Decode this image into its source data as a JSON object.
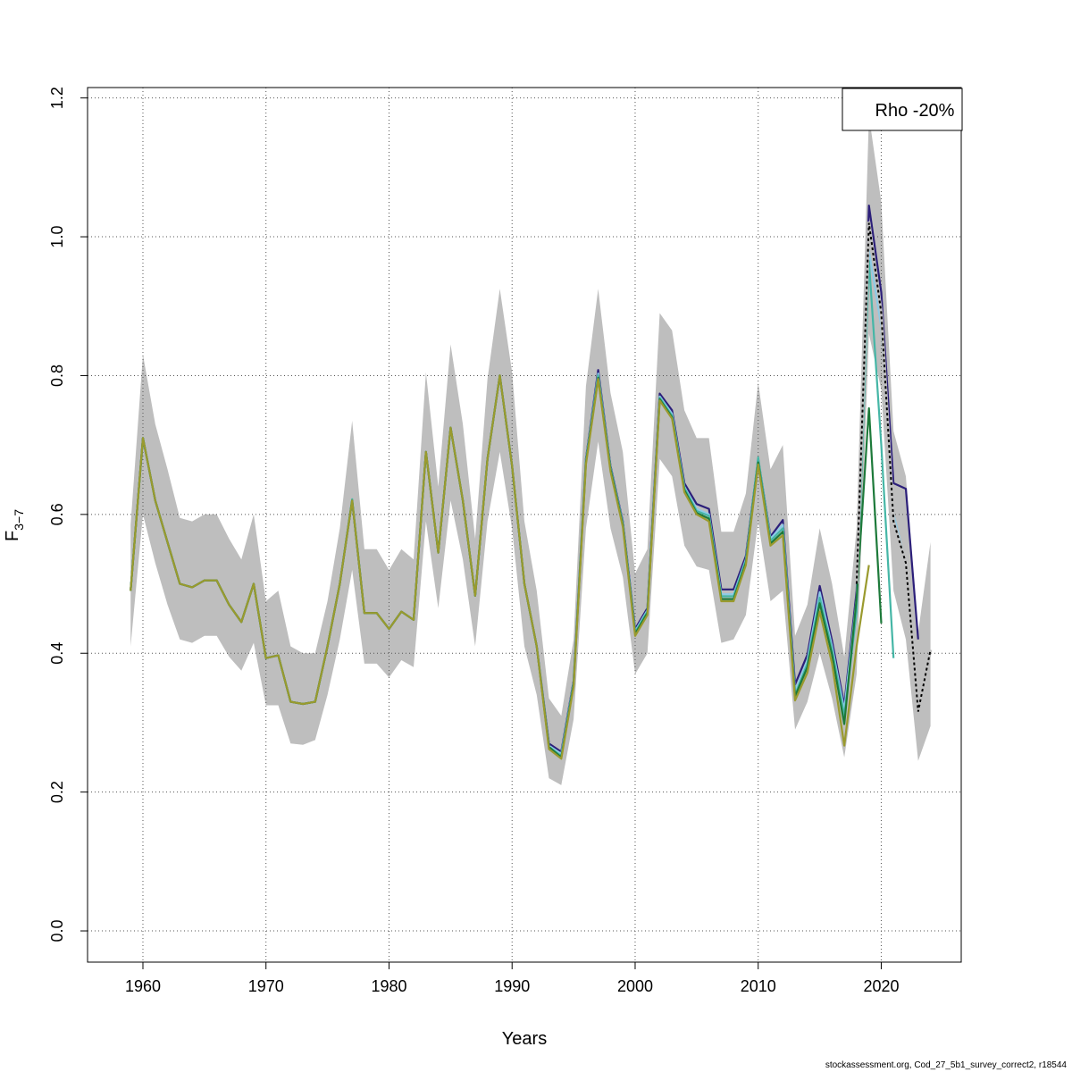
{
  "chart_data": {
    "type": "line",
    "title": "",
    "xlabel": "Years",
    "ylabel_main": "F",
    "ylabel_sub": "3−7",
    "xlim": [
      1955.5,
      2026.5
    ],
    "ylim": [
      -0.045,
      1.215
    ],
    "x_ticks": [
      1960,
      1970,
      1980,
      1990,
      2000,
      2010,
      2020
    ],
    "y_ticks": [
      0.0,
      0.2,
      0.4,
      0.6,
      0.8,
      1.0,
      1.2
    ],
    "y_tick_labels": [
      "0.0",
      "0.2",
      "0.4",
      "0.6",
      "0.8",
      "1.0",
      "1.2"
    ],
    "grid": true,
    "legend": {
      "text": "Rho -20%",
      "position": "top-right"
    },
    "confidence_band": {
      "color": "#bebebe",
      "x": [
        1959,
        1960,
        1961,
        1962,
        1963,
        1964,
        1965,
        1966,
        1967,
        1968,
        1969,
        1970,
        1971,
        1972,
        1973,
        1974,
        1975,
        1976,
        1977,
        1978,
        1979,
        1980,
        1981,
        1982,
        1983,
        1984,
        1985,
        1986,
        1987,
        1988,
        1989,
        1990,
        1991,
        1992,
        1993,
        1994,
        1995,
        1996,
        1997,
        1998,
        1999,
        2000,
        2001,
        2002,
        2003,
        2004,
        2005,
        2006,
        2007,
        2008,
        2009,
        2010,
        2011,
        2012,
        2013,
        2014,
        2015,
        2016,
        2017,
        2018,
        2019,
        2020,
        2021,
        2022,
        2023,
        2024
      ],
      "lower": [
        0.41,
        0.6,
        0.53,
        0.47,
        0.42,
        0.415,
        0.425,
        0.425,
        0.395,
        0.375,
        0.415,
        0.325,
        0.325,
        0.27,
        0.268,
        0.275,
        0.34,
        0.42,
        0.52,
        0.385,
        0.385,
        0.365,
        0.39,
        0.38,
        0.59,
        0.465,
        0.62,
        0.535,
        0.41,
        0.59,
        0.69,
        0.58,
        0.41,
        0.34,
        0.22,
        0.21,
        0.305,
        0.58,
        0.705,
        0.58,
        0.51,
        0.37,
        0.4,
        0.68,
        0.655,
        0.555,
        0.525,
        0.52,
        0.415,
        0.42,
        0.455,
        0.59,
        0.475,
        0.49,
        0.29,
        0.33,
        0.4,
        0.335,
        0.25,
        0.37,
        0.86,
        0.78,
        0.49,
        0.42,
        0.245,
        0.295
      ],
      "upper": [
        0.585,
        0.83,
        0.73,
        0.665,
        0.595,
        0.59,
        0.6,
        0.6,
        0.565,
        0.535,
        0.6,
        0.475,
        0.49,
        0.41,
        0.4,
        0.4,
        0.475,
        0.58,
        0.735,
        0.55,
        0.55,
        0.52,
        0.55,
        0.535,
        0.805,
        0.64,
        0.845,
        0.73,
        0.565,
        0.795,
        0.925,
        0.805,
        0.59,
        0.49,
        0.335,
        0.31,
        0.42,
        0.785,
        0.925,
        0.775,
        0.69,
        0.515,
        0.55,
        0.89,
        0.865,
        0.75,
        0.71,
        0.71,
        0.575,
        0.575,
        0.63,
        0.79,
        0.665,
        0.7,
        0.425,
        0.47,
        0.58,
        0.5,
        0.395,
        0.58,
        1.175,
        1.05,
        0.72,
        0.655,
        0.43,
        0.56
      ]
    },
    "series": [
      {
        "color": "#2c1f7a",
        "x": [
          1959,
          1960,
          1961,
          1962,
          1963,
          1964,
          1965,
          1966,
          1967,
          1968,
          1969,
          1970,
          1971,
          1972,
          1973,
          1974,
          1975,
          1976,
          1977,
          1978,
          1979,
          1980,
          1981,
          1982,
          1983,
          1984,
          1985,
          1986,
          1987,
          1988,
          1989,
          1990,
          1991,
          1992,
          1993,
          1994,
          1995,
          1996,
          1997,
          1998,
          1999,
          2000,
          2001,
          2002,
          2003,
          2004,
          2005,
          2006,
          2007,
          2008,
          2009,
          2010,
          2011,
          2012,
          2013,
          2014,
          2015,
          2016,
          2017,
          2018,
          2019,
          2020,
          2021,
          2022,
          2023
        ],
        "values": [
          0.49,
          0.71,
          0.62,
          0.56,
          0.5,
          0.495,
          0.505,
          0.505,
          0.47,
          0.445,
          0.5,
          0.393,
          0.397,
          0.33,
          0.327,
          0.33,
          0.41,
          0.5,
          0.62,
          0.458,
          0.458,
          0.435,
          0.46,
          0.448,
          0.69,
          0.545,
          0.725,
          0.62,
          0.483,
          0.68,
          0.8,
          0.67,
          0.5,
          0.41,
          0.27,
          0.258,
          0.36,
          0.68,
          0.808,
          0.67,
          0.59,
          0.435,
          0.465,
          0.774,
          0.75,
          0.645,
          0.615,
          0.608,
          0.492,
          0.492,
          0.54,
          0.68,
          0.568,
          0.592,
          0.355,
          0.398,
          0.497,
          0.418,
          0.325,
          0.49,
          1.045,
          0.92,
          0.645,
          0.637,
          0.42
        ]
      },
      {
        "color": "#8ecbe6",
        "x": [
          1959,
          1960,
          1961,
          1962,
          1963,
          1964,
          1965,
          1966,
          1967,
          1968,
          1969,
          1970,
          1971,
          1972,
          1973,
          1974,
          1975,
          1976,
          1977,
          1978,
          1979,
          1980,
          1981,
          1982,
          1983,
          1984,
          1985,
          1986,
          1987,
          1988,
          1989,
          1990,
          1991,
          1992,
          1993,
          1994,
          1995,
          1996,
          1997,
          1998,
          1999,
          2000,
          2001,
          2002,
          2003,
          2004,
          2005,
          2006,
          2007,
          2008,
          2009,
          2010,
          2011,
          2012,
          2013,
          2014,
          2015,
          2016,
          2017,
          2018,
          2019,
          2020,
          2021,
          2022
        ],
        "values": [
          0.49,
          0.71,
          0.62,
          0.56,
          0.5,
          0.495,
          0.505,
          0.505,
          0.47,
          0.445,
          0.5,
          0.393,
          0.397,
          0.33,
          0.327,
          0.33,
          0.41,
          0.5,
          0.62,
          0.458,
          0.458,
          0.435,
          0.46,
          0.448,
          0.69,
          0.545,
          0.725,
          0.62,
          0.483,
          0.68,
          0.8,
          0.67,
          0.5,
          0.41,
          0.267,
          0.255,
          0.358,
          0.678,
          0.803,
          0.668,
          0.588,
          0.432,
          0.462,
          0.77,
          0.745,
          0.64,
          0.608,
          0.6,
          0.485,
          0.485,
          0.535,
          0.68,
          0.565,
          0.585,
          0.345,
          0.39,
          0.488,
          0.41,
          0.318,
          0.48,
          0.98,
          0.87,
          0.6,
          0.53
        ]
      },
      {
        "color": "#45b6a6",
        "x": [
          1959,
          1960,
          1961,
          1962,
          1963,
          1964,
          1965,
          1966,
          1967,
          1968,
          1969,
          1970,
          1971,
          1972,
          1973,
          1974,
          1975,
          1976,
          1977,
          1978,
          1979,
          1980,
          1981,
          1982,
          1983,
          1984,
          1985,
          1986,
          1987,
          1988,
          1989,
          1990,
          1991,
          1992,
          1993,
          1994,
          1995,
          1996,
          1997,
          1998,
          1999,
          2000,
          2001,
          2002,
          2003,
          2004,
          2005,
          2006,
          2007,
          2008,
          2009,
          2010,
          2011,
          2012,
          2013,
          2014,
          2015,
          2016,
          2017,
          2018,
          2019,
          2020,
          2021
        ],
        "values": [
          0.49,
          0.71,
          0.62,
          0.56,
          0.5,
          0.495,
          0.505,
          0.505,
          0.47,
          0.445,
          0.5,
          0.393,
          0.397,
          0.33,
          0.327,
          0.33,
          0.41,
          0.5,
          0.622,
          0.458,
          0.458,
          0.435,
          0.46,
          0.448,
          0.69,
          0.545,
          0.725,
          0.62,
          0.483,
          0.68,
          0.8,
          0.67,
          0.5,
          0.41,
          0.265,
          0.252,
          0.357,
          0.676,
          0.8,
          0.667,
          0.586,
          0.43,
          0.46,
          0.768,
          0.742,
          0.638,
          0.605,
          0.598,
          0.482,
          0.482,
          0.533,
          0.682,
          0.562,
          0.58,
          0.34,
          0.385,
          0.48,
          0.405,
          0.31,
          0.46,
          0.965,
          0.7,
          0.393
        ]
      },
      {
        "color": "#1d7a3a",
        "x": [
          1959,
          1960,
          1961,
          1962,
          1963,
          1964,
          1965,
          1966,
          1967,
          1968,
          1969,
          1970,
          1971,
          1972,
          1973,
          1974,
          1975,
          1976,
          1977,
          1978,
          1979,
          1980,
          1981,
          1982,
          1983,
          1984,
          1985,
          1986,
          1987,
          1988,
          1989,
          1990,
          1991,
          1992,
          1993,
          1994,
          1995,
          1996,
          1997,
          1998,
          1999,
          2000,
          2001,
          2002,
          2003,
          2004,
          2005,
          2006,
          2007,
          2008,
          2009,
          2010,
          2011,
          2012,
          2013,
          2014,
          2015,
          2016,
          2017,
          2018,
          2019,
          2020
        ],
        "values": [
          0.49,
          0.71,
          0.62,
          0.56,
          0.5,
          0.495,
          0.505,
          0.505,
          0.47,
          0.445,
          0.5,
          0.393,
          0.397,
          0.33,
          0.327,
          0.33,
          0.41,
          0.5,
          0.62,
          0.458,
          0.458,
          0.435,
          0.46,
          0.448,
          0.69,
          0.545,
          0.725,
          0.62,
          0.483,
          0.68,
          0.8,
          0.67,
          0.5,
          0.41,
          0.265,
          0.25,
          0.355,
          0.675,
          0.797,
          0.665,
          0.585,
          0.428,
          0.458,
          0.766,
          0.74,
          0.635,
          0.602,
          0.594,
          0.478,
          0.478,
          0.53,
          0.675,
          0.558,
          0.575,
          0.338,
          0.38,
          0.472,
          0.398,
          0.298,
          0.48,
          0.753,
          0.443
        ]
      },
      {
        "color": "#9a9a2e",
        "x": [
          1959,
          1960,
          1961,
          1962,
          1963,
          1964,
          1965,
          1966,
          1967,
          1968,
          1969,
          1970,
          1971,
          1972,
          1973,
          1974,
          1975,
          1976,
          1977,
          1978,
          1979,
          1980,
          1981,
          1982,
          1983,
          1984,
          1985,
          1986,
          1987,
          1988,
          1989,
          1990,
          1991,
          1992,
          1993,
          1994,
          1995,
          1996,
          1997,
          1998,
          1999,
          2000,
          2001,
          2002,
          2003,
          2004,
          2005,
          2006,
          2007,
          2008,
          2009,
          2010,
          2011,
          2012,
          2013,
          2014,
          2015,
          2016,
          2017,
          2018,
          2019
        ],
        "values": [
          0.49,
          0.71,
          0.62,
          0.56,
          0.5,
          0.495,
          0.505,
          0.505,
          0.47,
          0.445,
          0.5,
          0.393,
          0.397,
          0.33,
          0.327,
          0.33,
          0.41,
          0.5,
          0.62,
          0.458,
          0.458,
          0.435,
          0.46,
          0.448,
          0.69,
          0.545,
          0.725,
          0.62,
          0.483,
          0.68,
          0.8,
          0.67,
          0.5,
          0.41,
          0.262,
          0.248,
          0.352,
          0.672,
          0.795,
          0.662,
          0.582,
          0.425,
          0.455,
          0.764,
          0.738,
          0.632,
          0.6,
          0.59,
          0.475,
          0.475,
          0.527,
          0.672,
          0.555,
          0.57,
          0.332,
          0.372,
          0.46,
          0.385,
          0.267,
          0.41,
          0.527
        ]
      },
      {
        "color": "#000000",
        "dashed": true,
        "x": [
          2018,
          2019,
          2020,
          2021,
          2022,
          2023,
          2024
        ],
        "values": [
          0.5,
          1.02,
          0.89,
          0.59,
          0.53,
          0.316,
          0.405
        ]
      }
    ]
  },
  "footer": "stockassessment.org, Cod_27_5b1_survey_correct2, r18544"
}
